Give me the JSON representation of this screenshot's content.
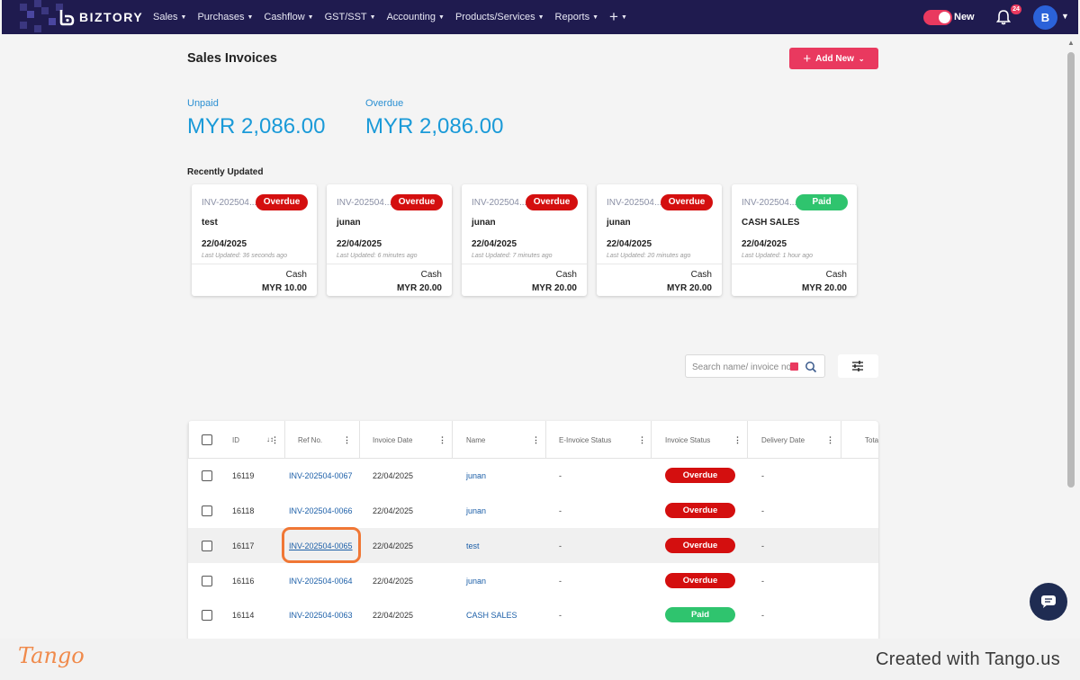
{
  "brand": {
    "name": "BIZTORY"
  },
  "nav": {
    "items": [
      {
        "label": "Sales"
      },
      {
        "label": "Purchases"
      },
      {
        "label": "Cashflow"
      },
      {
        "label": "GST/SST"
      },
      {
        "label": "Accounting"
      },
      {
        "label": "Products/Services"
      },
      {
        "label": "Reports"
      }
    ],
    "plus": "+",
    "toggle_label": "New",
    "notification_count": "24",
    "avatar_initial": "B"
  },
  "page": {
    "title": "Sales Invoices",
    "add_button_label": "Add New"
  },
  "summary": {
    "unpaid_label": "Unpaid",
    "unpaid_value": "MYR 2,086.00",
    "overdue_label": "Overdue",
    "overdue_value": "MYR 2,086.00"
  },
  "recent": {
    "title": "Recently Updated",
    "cards": [
      {
        "ref": "INV-202504",
        "status": "Overdue",
        "name": "test",
        "date": "22/04/2025",
        "updated": "Last Updated: 36 seconds ago",
        "payment": "Cash",
        "amount": "MYR 10.00"
      },
      {
        "ref": "INV-202504",
        "status": "Overdue",
        "name": "junan",
        "date": "22/04/2025",
        "updated": "Last Updated: 6 minutes ago",
        "payment": "Cash",
        "amount": "MYR 20.00"
      },
      {
        "ref": "INV-202504",
        "status": "Overdue",
        "name": "junan",
        "date": "22/04/2025",
        "updated": "Last Updated: 7 minutes ago",
        "payment": "Cash",
        "amount": "MYR 20.00"
      },
      {
        "ref": "INV-202504",
        "status": "Overdue",
        "name": "junan",
        "date": "22/04/2025",
        "updated": "Last Updated: 20 minutes ago",
        "payment": "Cash",
        "amount": "MYR 20.00"
      },
      {
        "ref": "INV-202504",
        "status": "Paid",
        "name": "CASH SALES",
        "date": "22/04/2025",
        "updated": "Last Updated: 1 hour ago",
        "payment": "Cash",
        "amount": "MYR 20.00"
      }
    ]
  },
  "search": {
    "placeholder": "Search name/ invoice no."
  },
  "table": {
    "columns": [
      "ID",
      "Ref No.",
      "Invoice Date",
      "Name",
      "E-Invoice Status",
      "Invoice Status",
      "Delivery Date",
      "Tota"
    ],
    "sort_indicator": "↓↕",
    "rows": [
      {
        "id": "16119",
        "ref": "INV-202504-0067",
        "date": "22/04/2025",
        "name": "junan",
        "einvoice": "-",
        "status": "Overdue",
        "delivery": "-"
      },
      {
        "id": "16118",
        "ref": "INV-202504-0066",
        "date": "22/04/2025",
        "name": "junan",
        "einvoice": "-",
        "status": "Overdue",
        "delivery": "-"
      },
      {
        "id": "16117",
        "ref": "INV-202504-0065",
        "date": "22/04/2025",
        "name": "test",
        "einvoice": "-",
        "status": "Overdue",
        "delivery": "-"
      },
      {
        "id": "16116",
        "ref": "INV-202504-0064",
        "date": "22/04/2025",
        "name": "junan",
        "einvoice": "-",
        "status": "Overdue",
        "delivery": "-"
      },
      {
        "id": "16114",
        "ref": "INV-202504-0063",
        "date": "22/04/2025",
        "name": "CASH SALES",
        "einvoice": "-",
        "status": "Paid",
        "delivery": "-"
      }
    ]
  },
  "colors": {
    "nav_bg": "#1f1b4f",
    "accent": "#e9395f",
    "overdue": "#d40f0f",
    "paid": "#2fc46e",
    "link": "#1c5fa8",
    "summary_value": "#1a9ad8",
    "focus_ring": "#f07735"
  },
  "footer": {
    "logo_text": "Tango",
    "credit": "Created with Tango.us"
  }
}
